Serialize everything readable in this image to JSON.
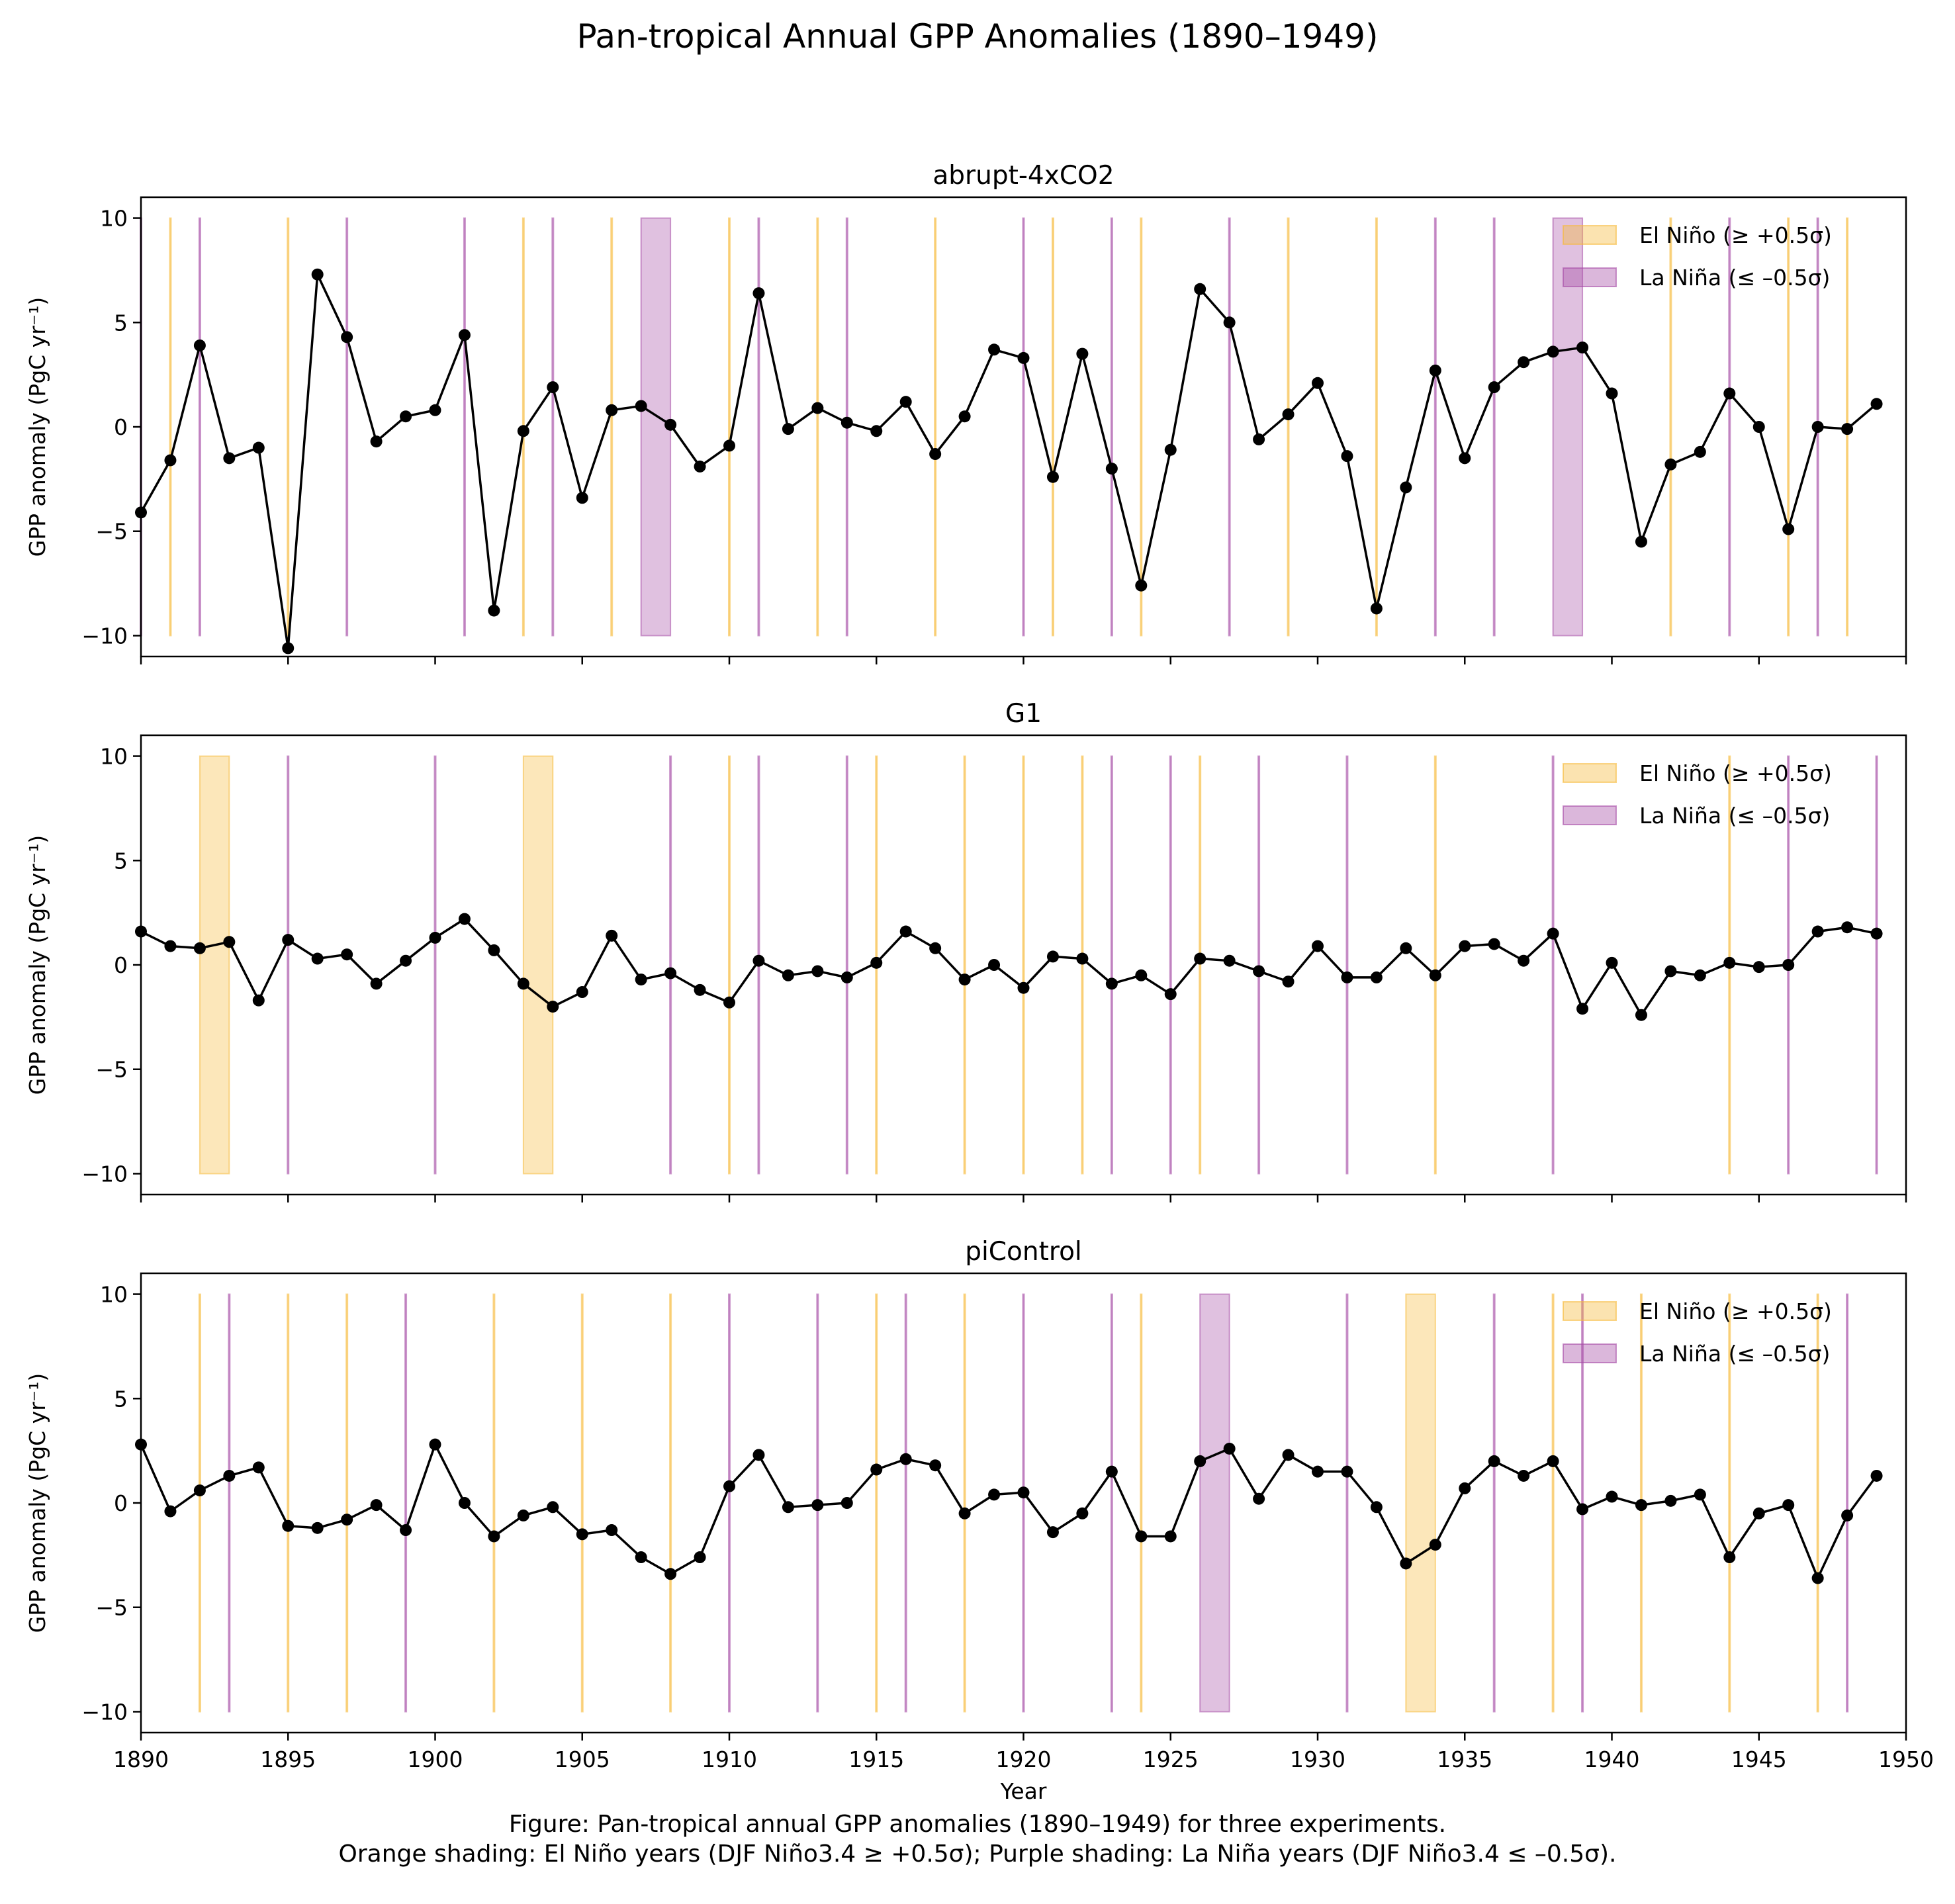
{
  "title": "Pan-tropical Annual GPP Anomalies (1890–1949)",
  "caption": {
    "line1": "Figure: Pan-tropical annual GPP anomalies (1890–1949) for three experiments.",
    "line2": "Orange shading: El Niño years (DJF Niño3.4 ≥ +0.5σ); Purple shading: La Niña years (DJF Niño3.4 ≤ –0.5σ)."
  },
  "colors": {
    "line": "#000000",
    "el_nino": "#f6b939",
    "la_nina": "#a64ca6"
  },
  "chart_data": [
    {
      "type": "line",
      "title": "abrupt-4xCO2",
      "xlabel": "",
      "ylabel": "GPP anomaly (PgC yr⁻¹)",
      "xlim": [
        1890,
        1950
      ],
      "ylim": [
        -11,
        11
      ],
      "xticks": [
        1890,
        1895,
        1900,
        1905,
        1910,
        1915,
        1920,
        1925,
        1930,
        1935,
        1940,
        1945,
        1950
      ],
      "xticklabels": false,
      "yticks": [
        -10,
        -5,
        0,
        5,
        10
      ],
      "legend": {
        "position": "top-right",
        "entries": [
          "El Niño (≥ +0.5σ)",
          "La Niña (≤ –0.5σ)"
        ]
      },
      "x_start": 1890,
      "values": [
        -4.1,
        -1.6,
        3.9,
        -1.5,
        -1.0,
        -10.6,
        7.3,
        4.3,
        -0.7,
        0.5,
        0.8,
        4.4,
        -8.8,
        -0.2,
        1.9,
        -3.4,
        0.8,
        1.0,
        0.1,
        -1.9,
        -0.9,
        6.4,
        -0.1,
        0.9,
        0.2,
        -0.2,
        1.2,
        -1.3,
        0.5,
        3.7,
        3.3,
        -2.4,
        3.5,
        -2.0,
        -7.6,
        -1.1,
        6.6,
        5.0,
        -0.6,
        0.6,
        2.1,
        -1.4,
        -8.7,
        -2.9,
        2.7,
        -1.5,
        1.9,
        3.1,
        3.6,
        3.8,
        1.6,
        -5.5,
        -1.8,
        -1.2,
        1.6,
        0.0,
        -4.9,
        0.0,
        -0.1,
        1.1
      ],
      "el_nino_years": [
        1891,
        1895,
        1903,
        1906,
        1910,
        1913,
        1917,
        1921,
        1924,
        1929,
        1932,
        1942,
        1946,
        1948
      ],
      "la_nina_years": [
        1890,
        1892,
        1897,
        1901,
        1904,
        1907,
        1908,
        1911,
        1914,
        1920,
        1923,
        1927,
        1934,
        1936,
        1938,
        1939,
        1944,
        1947
      ]
    },
    {
      "type": "line",
      "title": "G1",
      "xlabel": "",
      "ylabel": "GPP anomaly (PgC yr⁻¹)",
      "xlim": [
        1890,
        1950
      ],
      "ylim": [
        -11,
        11
      ],
      "xticks": [
        1890,
        1895,
        1900,
        1905,
        1910,
        1915,
        1920,
        1925,
        1930,
        1935,
        1940,
        1945,
        1950
      ],
      "xticklabels": false,
      "yticks": [
        -10,
        -5,
        0,
        5,
        10
      ],
      "legend": {
        "position": "top-right",
        "entries": [
          "El Niño (≥ +0.5σ)",
          "La Niña (≤ –0.5σ)"
        ]
      },
      "x_start": 1890,
      "values": [
        1.6,
        0.9,
        0.8,
        1.1,
        -1.7,
        1.2,
        0.3,
        0.5,
        -0.9,
        0.2,
        1.3,
        2.2,
        0.7,
        -0.9,
        -2.0,
        -1.3,
        1.4,
        -0.7,
        -0.4,
        -1.2,
        -1.8,
        0.2,
        -0.5,
        -0.3,
        -0.6,
        0.1,
        1.6,
        0.8,
        -0.7,
        0.0,
        -1.1,
        0.4,
        0.3,
        -0.9,
        -0.5,
        -1.4,
        0.3,
        0.2,
        -0.3,
        -0.8,
        0.9,
        -0.6,
        -0.6,
        0.8,
        -0.5,
        0.9,
        1.0,
        0.2,
        1.5,
        -2.1,
        0.1,
        -2.4,
        -0.3,
        -0.5,
        0.1,
        -0.1,
        0.0,
        1.6,
        1.8,
        1.5
      ],
      "el_nino_years": [
        1892,
        1893,
        1903,
        1904,
        1910,
        1915,
        1918,
        1920,
        1922,
        1926,
        1934,
        1944
      ],
      "la_nina_years": [
        1895,
        1900,
        1908,
        1911,
        1914,
        1923,
        1925,
        1928,
        1931,
        1938,
        1946,
        1949
      ]
    },
    {
      "type": "line",
      "title": "piControl",
      "xlabel": "Year",
      "ylabel": "GPP anomaly (PgC yr⁻¹)",
      "xlim": [
        1890,
        1950
      ],
      "ylim": [
        -11,
        11
      ],
      "xticks": [
        1890,
        1895,
        1900,
        1905,
        1910,
        1915,
        1920,
        1925,
        1930,
        1935,
        1940,
        1945,
        1950
      ],
      "xticklabels": true,
      "yticks": [
        -10,
        -5,
        0,
        5,
        10
      ],
      "legend": {
        "position": "top-right",
        "entries": [
          "El Niño (≥ +0.5σ)",
          "La Niña (≤ –0.5σ)"
        ]
      },
      "x_start": 1890,
      "values": [
        2.8,
        -0.4,
        0.6,
        1.3,
        1.7,
        -1.1,
        -1.2,
        -0.8,
        -0.1,
        -1.3,
        2.8,
        0.0,
        -1.6,
        -0.6,
        -0.2,
        -1.5,
        -1.3,
        -2.6,
        -3.4,
        -2.6,
        0.8,
        2.3,
        -0.2,
        -0.1,
        0.0,
        1.6,
        2.1,
        1.8,
        -0.5,
        0.4,
        0.5,
        -1.4,
        -0.5,
        1.5,
        -1.6,
        -1.6,
        2.0,
        2.6,
        0.2,
        2.3,
        1.5,
        1.5,
        -0.2,
        -2.9,
        -2.0,
        0.7,
        2.0,
        1.3,
        2.0,
        -0.3,
        0.3,
        -0.1,
        0.1,
        0.4,
        -2.6,
        -0.5,
        -0.1,
        -3.6,
        -0.6,
        1.3
      ],
      "el_nino_years": [
        1892,
        1895,
        1897,
        1902,
        1905,
        1908,
        1915,
        1918,
        1924,
        1933,
        1934,
        1938,
        1941,
        1944,
        1947
      ],
      "la_nina_years": [
        1893,
        1899,
        1910,
        1913,
        1916,
        1920,
        1923,
        1926,
        1927,
        1931,
        1936,
        1939,
        1948
      ]
    }
  ]
}
